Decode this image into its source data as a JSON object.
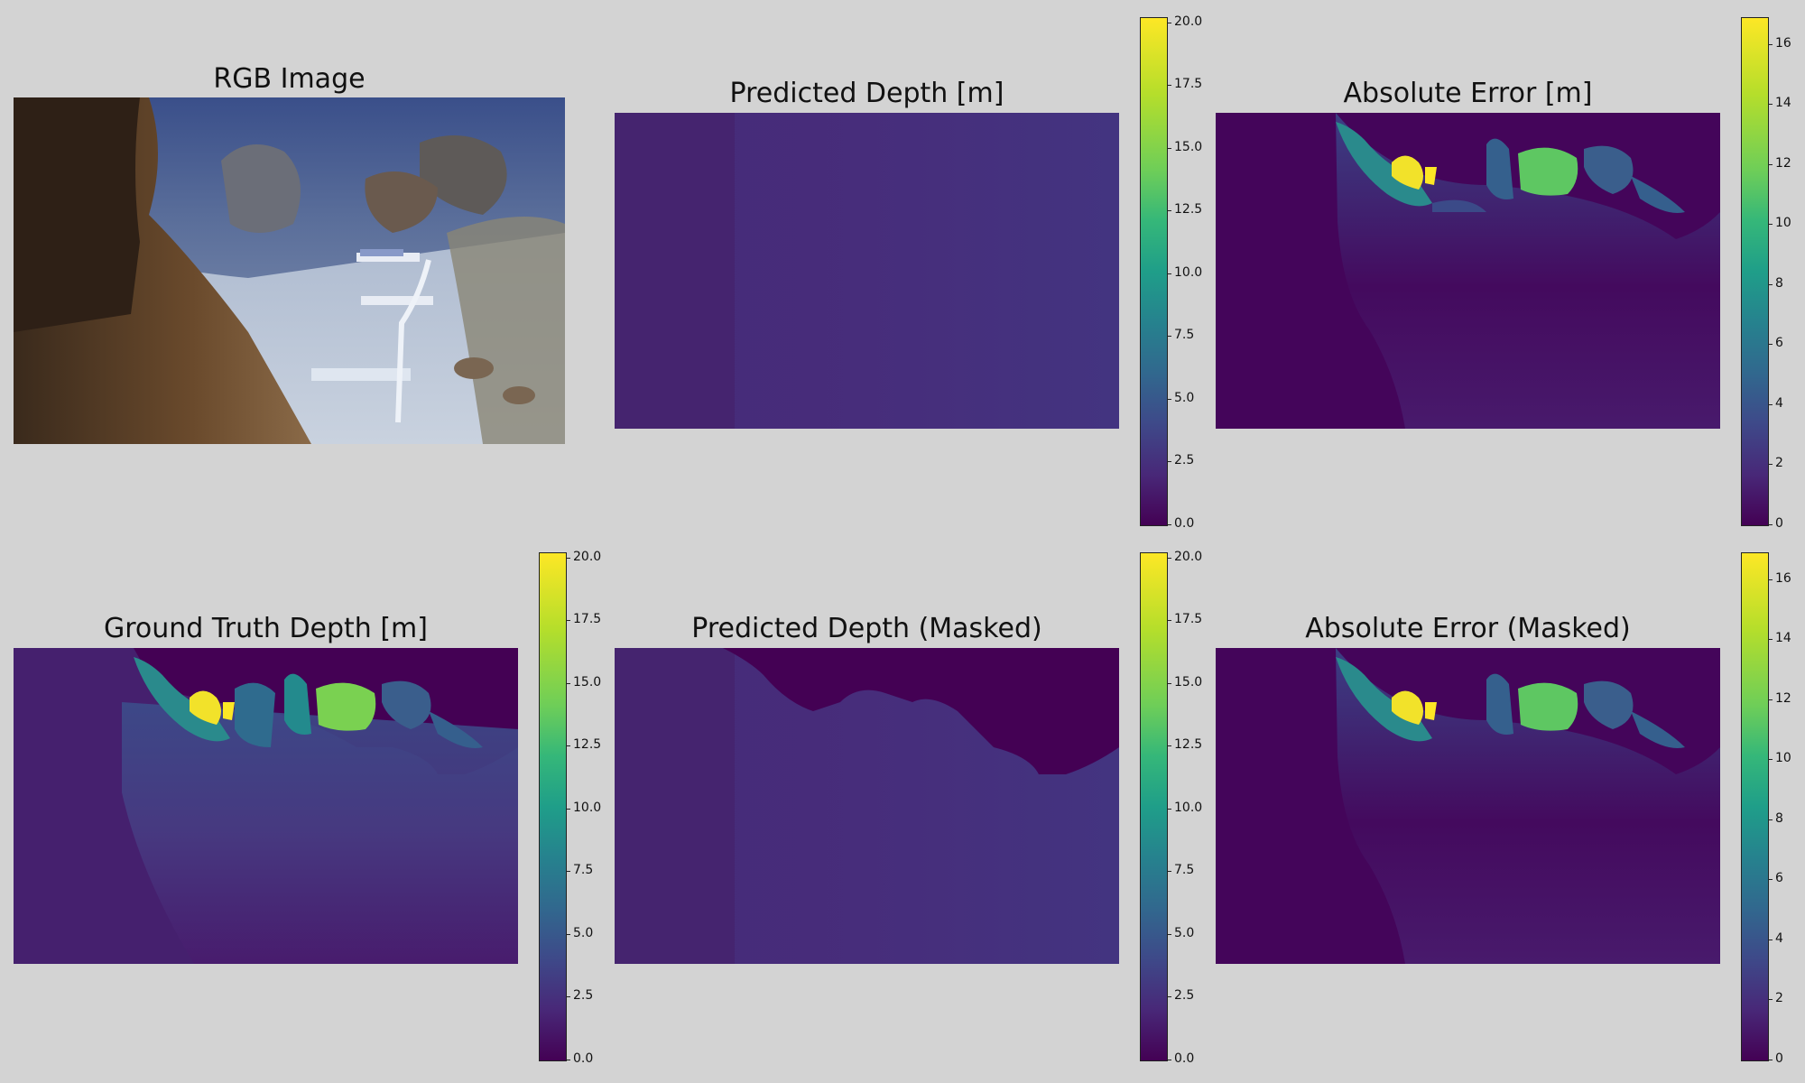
{
  "panels": [
    {
      "id": "rgb",
      "title": "RGB Image"
    },
    {
      "id": "pred",
      "title": "Predicted Depth [m]"
    },
    {
      "id": "err",
      "title": "Absolute Error [m]"
    },
    {
      "id": "gt",
      "title": "Ground Truth Depth [m]"
    },
    {
      "id": "predm",
      "title": "Predicted Depth (Masked)"
    },
    {
      "id": "errm",
      "title": "Absolute Error (Masked)"
    }
  ],
  "colors": {
    "background": "#d3d3d3",
    "viridis_min": "#440154",
    "viridis_max": "#fde725"
  },
  "chart_data": [
    {
      "type": "heatmap",
      "title": "Predicted Depth [m]",
      "colormap": "viridis",
      "colorbar": {
        "min": 0,
        "max": 20.2,
        "ticks": [
          "0.0",
          "2.5",
          "5.0",
          "7.5",
          "10.0",
          "12.5",
          "15.0",
          "17.5",
          "20.0"
        ]
      }
    },
    {
      "type": "heatmap",
      "title": "Absolute Error [m]",
      "colormap": "viridis",
      "colorbar": {
        "min": 0,
        "max": 16.9,
        "ticks": [
          "0",
          "2",
          "4",
          "6",
          "8",
          "10",
          "12",
          "14",
          "16"
        ]
      }
    },
    {
      "type": "heatmap",
      "title": "Ground Truth Depth [m]",
      "colormap": "viridis",
      "colorbar": {
        "min": 0,
        "max": 20.2,
        "ticks": [
          "0.0",
          "2.5",
          "5.0",
          "7.5",
          "10.0",
          "12.5",
          "15.0",
          "17.5",
          "20.0"
        ]
      }
    },
    {
      "type": "heatmap",
      "title": "Predicted Depth (Masked)",
      "colormap": "viridis",
      "colorbar": {
        "min": 0,
        "max": 20.2,
        "ticks": [
          "0.0",
          "2.5",
          "5.0",
          "7.5",
          "10.0",
          "12.5",
          "15.0",
          "17.5",
          "20.0"
        ]
      }
    },
    {
      "type": "heatmap",
      "title": "Absolute Error (Masked)",
      "colormap": "viridis",
      "colorbar": {
        "min": 0,
        "max": 16.9,
        "ticks": [
          "0",
          "2",
          "4",
          "6",
          "8",
          "10",
          "12",
          "14",
          "16"
        ]
      }
    }
  ]
}
